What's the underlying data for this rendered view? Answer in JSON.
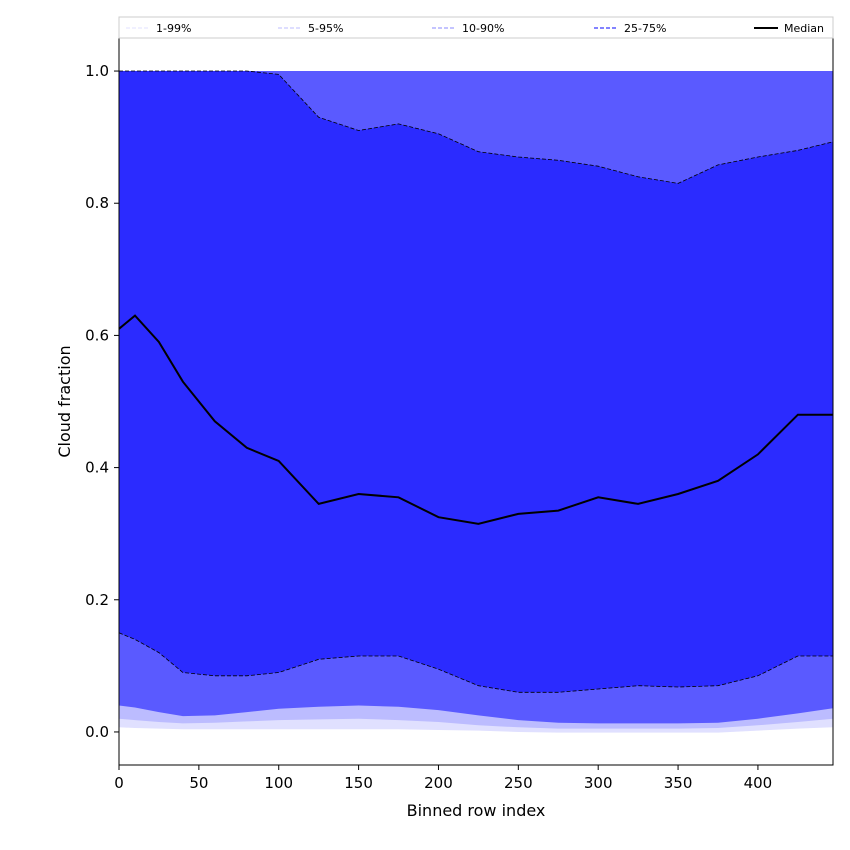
{
  "chart_data": {
    "type": "area",
    "title": "",
    "xlabel": "Binned row index",
    "ylabel": "Cloud fraction",
    "xlim": [
      0,
      447
    ],
    "ylim": [
      -0.05,
      1.05
    ],
    "xticks": [
      0,
      50,
      100,
      150,
      200,
      250,
      300,
      350,
      400
    ],
    "yticks": [
      0.0,
      0.2,
      0.4,
      0.6,
      0.8,
      1.0
    ],
    "ytick_labels": [
      "0.0",
      "0.2",
      "0.4",
      "0.6",
      "0.8",
      "1.0"
    ],
    "grid": false,
    "legend_position": "top",
    "x": [
      0,
      10,
      25,
      40,
      60,
      80,
      100,
      125,
      150,
      175,
      200,
      225,
      250,
      275,
      300,
      325,
      350,
      375,
      400,
      425,
      447
    ],
    "bands": [
      {
        "name": "1-99%",
        "color": "#e0e0ff",
        "lower": [
          0.007,
          0.006,
          0.005,
          0.004,
          0.004,
          0.004,
          0.004,
          0.004,
          0.004,
          0.004,
          0.003,
          0.002,
          0.0,
          -0.001,
          -0.001,
          -0.001,
          -0.001,
          -0.001,
          0.002,
          0.005,
          0.007
        ],
        "upper": [
          1.0,
          1.0,
          1.0,
          1.0,
          1.0,
          1.0,
          1.0,
          1.0,
          1.0,
          1.0,
          1.0,
          1.0,
          1.0,
          1.0,
          1.0,
          1.0,
          1.0,
          1.0,
          1.0,
          1.0,
          1.0
        ]
      },
      {
        "name": "5-95%",
        "color": "#bcbcff",
        "lower": [
          0.02,
          0.018,
          0.015,
          0.013,
          0.014,
          0.016,
          0.018,
          0.019,
          0.02,
          0.018,
          0.015,
          0.01,
          0.007,
          0.005,
          0.005,
          0.005,
          0.005,
          0.006,
          0.01,
          0.015,
          0.02
        ],
        "upper": [
          1.0,
          1.0,
          1.0,
          1.0,
          1.0,
          1.0,
          1.0,
          1.0,
          1.0,
          1.0,
          1.0,
          1.0,
          1.0,
          1.0,
          1.0,
          1.0,
          1.0,
          1.0,
          1.0,
          1.0,
          1.0
        ]
      },
      {
        "name": "10-90%",
        "color": "#5a5aff",
        "lower": [
          0.04,
          0.037,
          0.03,
          0.024,
          0.025,
          0.03,
          0.035,
          0.038,
          0.04,
          0.038,
          0.033,
          0.025,
          0.018,
          0.014,
          0.013,
          0.013,
          0.013,
          0.014,
          0.02,
          0.028,
          0.036
        ],
        "upper": [
          1.0,
          1.0,
          1.0,
          1.0,
          1.0,
          1.0,
          1.0,
          1.0,
          1.0,
          1.0,
          1.0,
          1.0,
          1.0,
          1.0,
          1.0,
          1.0,
          1.0,
          1.0,
          1.0,
          1.0,
          1.0
        ]
      },
      {
        "name": "25-75%",
        "color": "#2b2bff",
        "lower": [
          0.15,
          0.14,
          0.12,
          0.09,
          0.085,
          0.085,
          0.09,
          0.11,
          0.115,
          0.115,
          0.095,
          0.07,
          0.06,
          0.06,
          0.065,
          0.07,
          0.068,
          0.07,
          0.085,
          0.115,
          0.115
        ],
        "upper": [
          1.0,
          1.0,
          1.0,
          1.0,
          1.0,
          1.0,
          0.995,
          0.93,
          0.91,
          0.92,
          0.905,
          0.878,
          0.87,
          0.865,
          0.856,
          0.84,
          0.83,
          0.858,
          0.87,
          0.88,
          0.893
        ]
      }
    ],
    "series": [
      {
        "name": "Median",
        "color": "#000000",
        "values": [
          0.61,
          0.63,
          0.59,
          0.53,
          0.47,
          0.43,
          0.41,
          0.345,
          0.36,
          0.355,
          0.325,
          0.315,
          0.33,
          0.335,
          0.355,
          0.345,
          0.36,
          0.38,
          0.42,
          0.48,
          0.48
        ]
      }
    ],
    "legend": [
      "1-99%",
      "5-95%",
      "10-90%",
      "25-75%",
      "Median"
    ]
  }
}
